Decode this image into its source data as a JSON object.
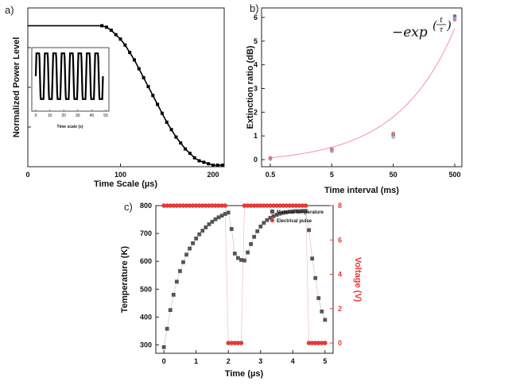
{
  "chart_data": [
    {
      "panel": "a)",
      "type": "line",
      "xlabel": "Time Scale (µs)",
      "ylabel": "Normalized Power Level",
      "xlim": [
        0,
        212
      ],
      "ylim": [
        0,
        1.07
      ],
      "xticks": [
        "0",
        "100",
        "200"
      ],
      "x": [
        0,
        20,
        40,
        60,
        80,
        85,
        90,
        95,
        100,
        105,
        110,
        115,
        120,
        125,
        130,
        135,
        140,
        145,
        150,
        155,
        160,
        165,
        170,
        175,
        180,
        185,
        190,
        195,
        200,
        205,
        210
      ],
      "y": [
        0.95,
        0.95,
        0.95,
        0.95,
        0.95,
        0.94,
        0.92,
        0.89,
        0.86,
        0.82,
        0.77,
        0.72,
        0.66,
        0.6,
        0.54,
        0.48,
        0.42,
        0.36,
        0.3,
        0.25,
        0.2,
        0.16,
        0.12,
        0.09,
        0.06,
        0.04,
        0.03,
        0.02,
        0.01,
        0.01,
        0.01
      ],
      "inset": {
        "type": "line",
        "xlabel": "Time scale (s)",
        "xticks": [
          "0",
          "10",
          "20",
          "30",
          "40",
          "50"
        ],
        "xlim": [
          0,
          50
        ],
        "cycles": 8,
        "amplitude_range": [
          0,
          1
        ]
      }
    },
    {
      "panel": "b)",
      "type": "scatter",
      "xlabel": "Time interval (ms)",
      "ylabel": "Extinction ratio (dB)",
      "xscale": "log",
      "xticks": [
        "0.5",
        "5",
        "50",
        "500"
      ],
      "yticks": [
        "0",
        "1",
        "2",
        "3",
        "4",
        "5",
        "6"
      ],
      "ylim": [
        -0.3,
        6.4
      ],
      "annotation": "−exp(t/τ)",
      "annotation_parts": {
        "base": "−exp",
        "num": "t",
        "den": "τ"
      },
      "series": [
        {
          "color": "#3f51b5",
          "x": [
            0.5,
            5,
            50,
            500
          ],
          "values": [
            0.05,
            0.4,
            1.05,
            6.05
          ]
        },
        {
          "color": "#9fa8da",
          "x": [
            0.5,
            5,
            50,
            500
          ],
          "values": [
            0.02,
            0.35,
            0.95,
            5.95
          ]
        },
        {
          "color": "#e57373",
          "x": [
            0.5,
            5,
            50,
            500
          ],
          "values": [
            0.07,
            0.45,
            1.1,
            5.9
          ]
        }
      ],
      "fit_color": "#f48fb1"
    },
    {
      "panel": "c)",
      "type": "scatter",
      "xlabel": "Time (µs)",
      "ylabel": "Temperature (K)",
      "ylabel_right": "Voltage (V)",
      "xlim": [
        -0.25,
        5.25
      ],
      "xticks": [
        "0",
        "1",
        "2",
        "3",
        "4",
        "5"
      ],
      "ylim": [
        270,
        800
      ],
      "yticks": [
        "300",
        "400",
        "500",
        "600",
        "700",
        "800"
      ],
      "ylim_right": [
        -0.6,
        8
      ],
      "yticks_right": [
        "0",
        "2",
        "4",
        "6",
        "8"
      ],
      "legend_position": "top-right",
      "series": [
        {
          "name": "Material temperature",
          "color": "#555555",
          "x": [
            0,
            0.1,
            0.2,
            0.3,
            0.4,
            0.5,
            0.6,
            0.7,
            0.8,
            0.9,
            1.0,
            1.1,
            1.2,
            1.3,
            1.4,
            1.5,
            1.6,
            1.7,
            1.8,
            1.9,
            2.0,
            2.1,
            2.2,
            2.3,
            2.4,
            2.5,
            2.6,
            2.7,
            2.8,
            2.9,
            3.0,
            3.1,
            3.2,
            3.3,
            3.4,
            3.5,
            3.6,
            3.7,
            3.8,
            3.9,
            4.0,
            4.1,
            4.2,
            4.3,
            4.4,
            4.5,
            4.6,
            4.7,
            4.8,
            4.9,
            5.0
          ],
          "values": [
            292,
            358,
            425,
            480,
            527,
            565,
            597,
            624,
            646,
            665,
            682,
            697,
            710,
            722,
            733,
            742,
            751,
            758,
            764,
            770,
            775,
            716,
            628,
            612,
            605,
            603,
            632,
            662,
            688,
            708,
            725,
            738,
            748,
            756,
            762,
            767,
            771,
            774,
            776,
            778,
            779,
            780,
            780,
            781,
            781,
            712,
            610,
            540,
            468,
            420,
            390
          ]
        },
        {
          "name": "Electrical pulse",
          "color": "#e53935",
          "x": [
            0,
            0.1,
            0.2,
            0.3,
            0.4,
            0.5,
            0.6,
            0.7,
            0.8,
            0.9,
            1.0,
            1.1,
            1.2,
            1.3,
            1.4,
            1.5,
            1.6,
            1.7,
            1.8,
            1.9,
            2.0,
            2.1,
            2.2,
            2.3,
            2.4,
            2.5,
            2.6,
            2.7,
            2.8,
            2.9,
            3.0,
            3.1,
            3.2,
            3.3,
            3.4,
            3.5,
            3.6,
            3.7,
            3.8,
            3.9,
            4.0,
            4.1,
            4.2,
            4.3,
            4.4,
            4.5,
            4.6,
            4.7,
            4.8,
            4.9,
            5.0
          ],
          "values": [
            8,
            8,
            8,
            8,
            8,
            8,
            8,
            8,
            8,
            8,
            8,
            8,
            8,
            8,
            8,
            8,
            8,
            8,
            8,
            8,
            0,
            0,
            0,
            0,
            0,
            8,
            8,
            8,
            8,
            8,
            8,
            8,
            8,
            8,
            8,
            8,
            8,
            8,
            8,
            8,
            8,
            8,
            8,
            8,
            8,
            0,
            0,
            0,
            0,
            0,
            0
          ]
        }
      ]
    }
  ]
}
